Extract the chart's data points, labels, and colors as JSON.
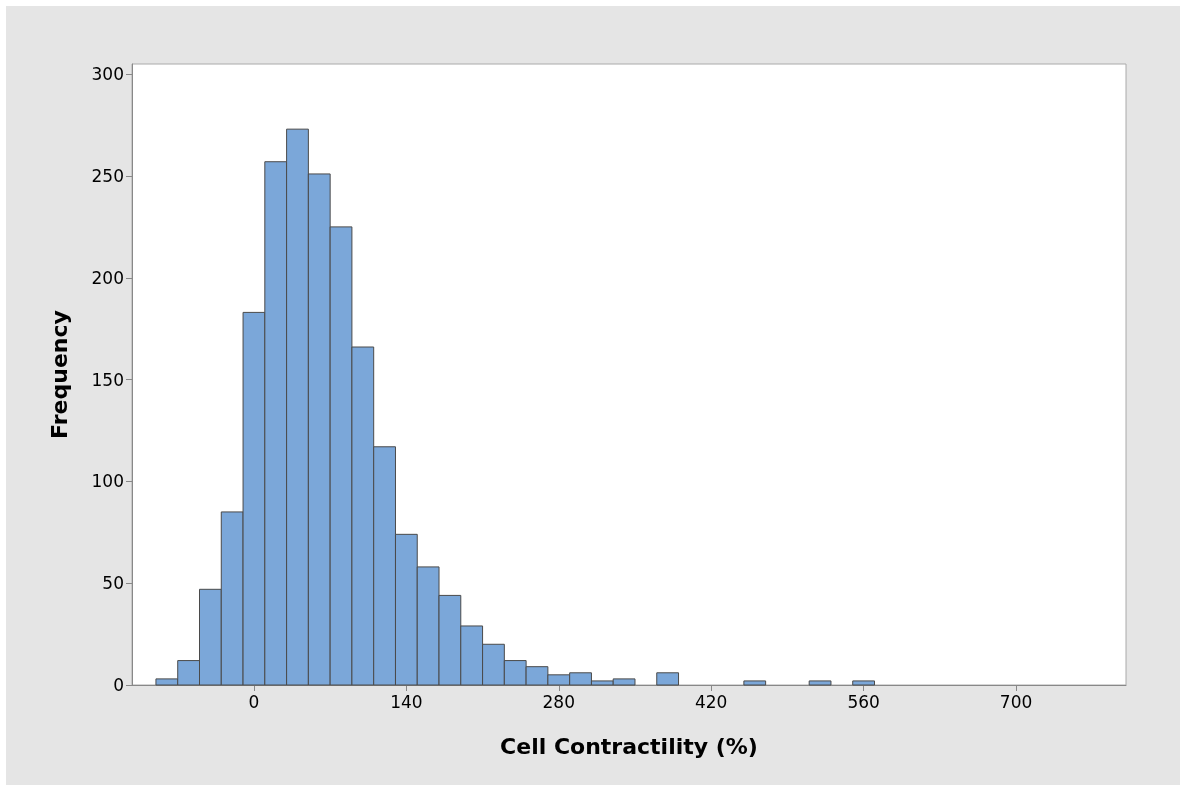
{
  "chart_data": {
    "type": "histogram",
    "xlabel": "Cell Contractility (%)",
    "ylabel": "Frequency",
    "color": "#7ba7d9",
    "bins": [
      -90,
      -70,
      -50,
      -30,
      -10,
      10,
      30,
      50,
      70,
      90,
      110,
      130,
      150,
      170,
      190,
      210,
      230,
      250,
      270,
      290,
      310,
      330,
      350,
      370,
      390,
      410,
      430,
      450,
      470,
      490,
      510,
      530,
      550,
      570
    ],
    "values": [
      3,
      12,
      47,
      85,
      183,
      257,
      273,
      251,
      225,
      166,
      117,
      74,
      58,
      44,
      29,
      20,
      12,
      9,
      5,
      6,
      2,
      3,
      0,
      6,
      0,
      0,
      0,
      2,
      0,
      0,
      2,
      0,
      2
    ],
    "xlim": [
      -112,
      801
    ],
    "xticks": [
      0,
      140,
      280,
      420,
      560,
      700
    ],
    "ylim": [
      0,
      305
    ],
    "yticks": [
      0,
      50,
      100,
      150,
      200,
      250,
      300
    ]
  }
}
